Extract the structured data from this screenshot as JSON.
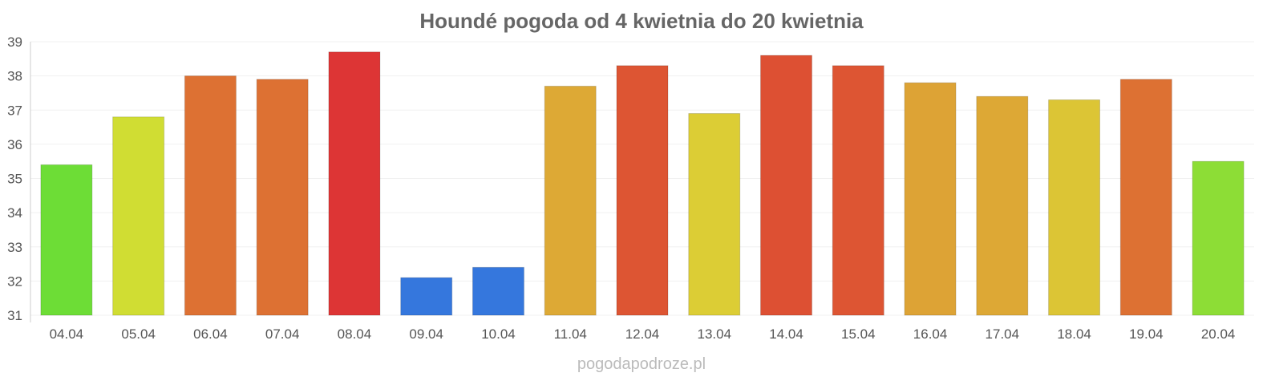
{
  "chart_data": {
    "type": "bar",
    "title": "Houndé pogoda od 4 kwietnia do 20 kwietnia",
    "xlabel": "",
    "ylabel": "",
    "ylim": [
      31,
      39
    ],
    "yticks": [
      "31",
      "32",
      "33",
      "34",
      "35",
      "36",
      "37",
      "38",
      "39"
    ],
    "grid": true,
    "categories": [
      "04.04",
      "05.04",
      "06.04",
      "07.04",
      "08.04",
      "09.04",
      "10.04",
      "11.04",
      "12.04",
      "13.04",
      "14.04",
      "15.04",
      "16.04",
      "17.04",
      "18.04",
      "19.04",
      "20.04"
    ],
    "values": [
      35.4,
      36.8,
      38.0,
      37.9,
      38.7,
      32.1,
      32.4,
      37.7,
      38.3,
      36.9,
      38.6,
      38.3,
      37.8,
      37.4,
      37.3,
      37.9,
      35.5
    ],
    "colors": [
      "#6ddd36",
      "#d0dd33",
      "#dd7133",
      "#dd7133",
      "#dd3535",
      "#3577dd",
      "#3577dd",
      "#dda935",
      "#dd5533",
      "#dccd35",
      "#dd5033",
      "#dd5533",
      "#dda335",
      "#dda835",
      "#dcc535",
      "#dd7133",
      "#8ddd36"
    ]
  },
  "credit": "pogodapodroze.pl"
}
